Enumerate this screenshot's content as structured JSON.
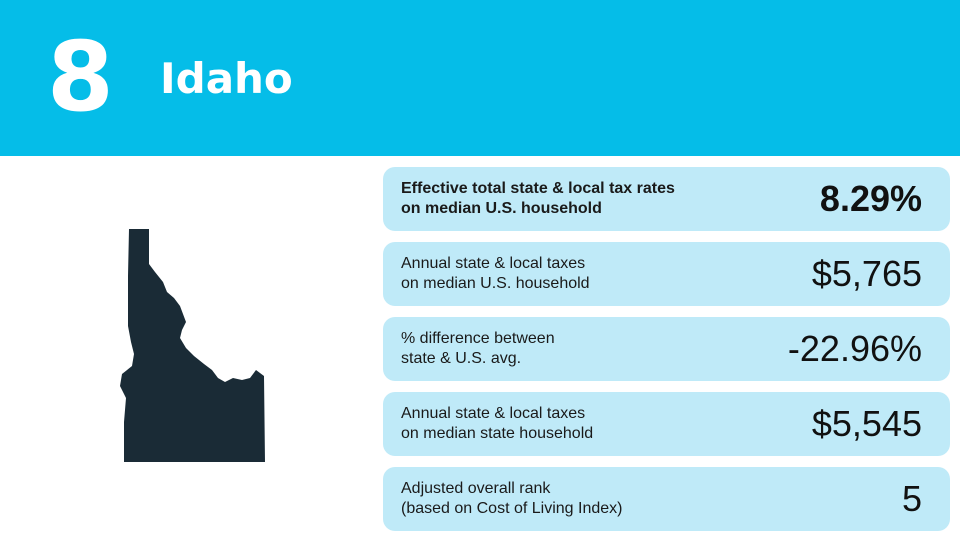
{
  "header": {
    "rank": "8",
    "state": "Idaho"
  },
  "map": {
    "icon": "idaho-state-silhouette",
    "color": "#1a2b36"
  },
  "colors": {
    "header_bg": "#05bde8",
    "card_bg": "#bfeaf8"
  },
  "stats": [
    {
      "label_line1": "Effective total state & local tax rates",
      "label_line2": "on median U.S. household",
      "value": "8.29%"
    },
    {
      "label_line1": "Annual state & local taxes",
      "label_line2": "on median U.S. household",
      "value": "$5,765"
    },
    {
      "label_line1": "% difference between",
      "label_line2": "state & U.S. avg.",
      "value": "-22.96%"
    },
    {
      "label_line1": "Annual state & local taxes",
      "label_line2": "on median state household",
      "value": "$5,545"
    },
    {
      "label_line1": "Adjusted overall rank",
      "label_line2": "(based on Cost of Living Index)",
      "value": "5"
    }
  ]
}
